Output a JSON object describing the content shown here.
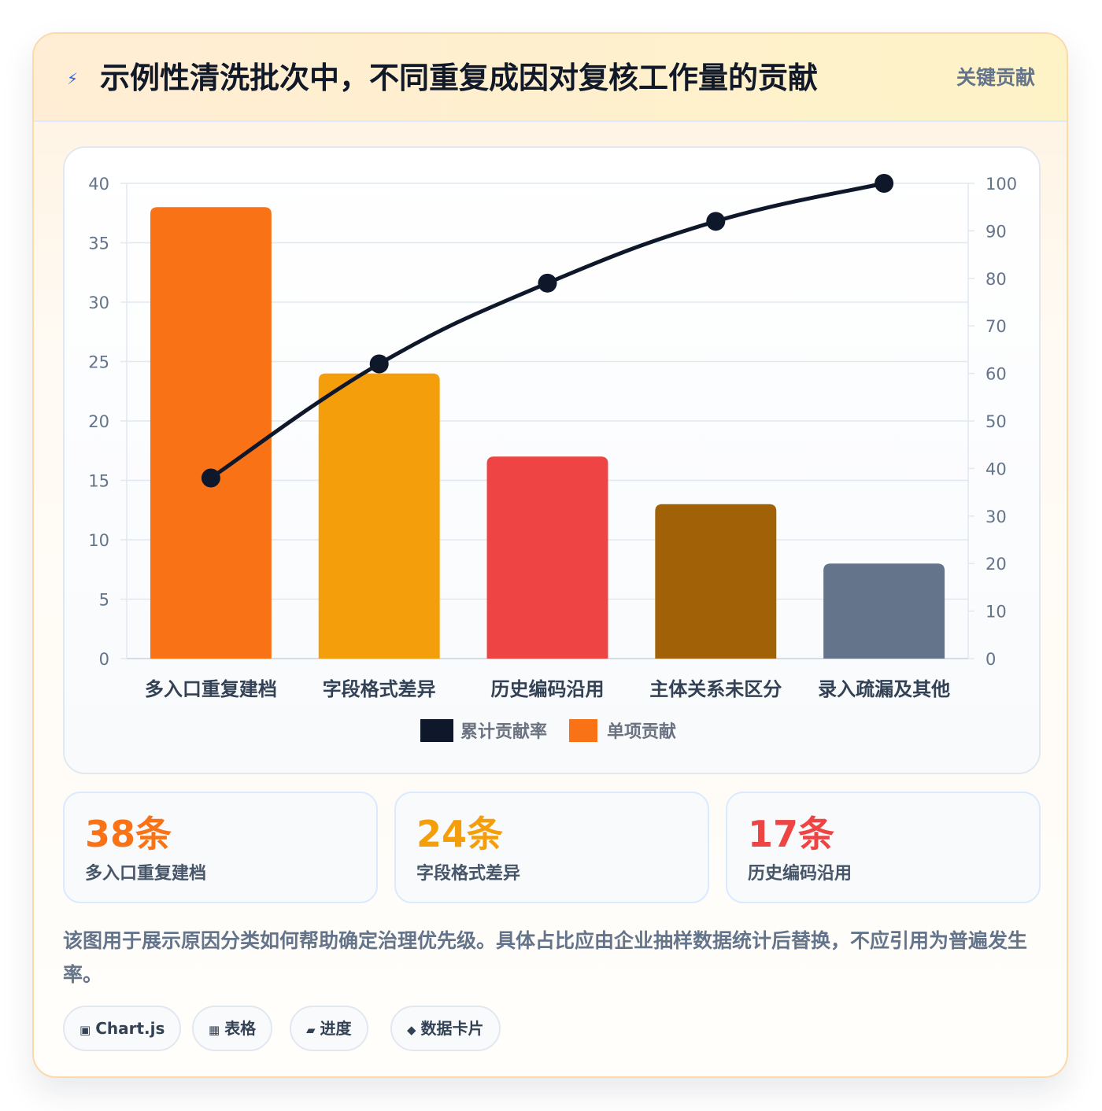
{
  "header": {
    "icon": "lightning-icon",
    "title": "示例性清洗批次中，不同重复成因对复核工作量的贡献",
    "badge": "关键贡献"
  },
  "chart_data": {
    "type": "bar",
    "categories": [
      "多入口重复建档",
      "字段格式差异",
      "历史编码沿用",
      "主体关系未区分",
      "录入疏漏及其他"
    ],
    "series": [
      {
        "name": "单项贡献",
        "type": "bar",
        "axis": "left",
        "values": [
          38,
          24,
          17,
          13,
          8
        ],
        "colors": [
          "#f97316",
          "#f59e0b",
          "#ef4444",
          "#a16207",
          "#64748b"
        ]
      },
      {
        "name": "累计贡献率",
        "type": "line",
        "axis": "right",
        "values": [
          38,
          62,
          79,
          92,
          100
        ],
        "color": "#0f172a"
      }
    ],
    "ylim": [
      0,
      40
    ],
    "y_ticks": [
      0,
      5,
      10,
      15,
      20,
      25,
      30,
      35,
      40
    ],
    "y2lim": [
      0,
      100
    ],
    "y2_ticks": [
      0,
      10,
      20,
      30,
      40,
      50,
      60,
      70,
      80,
      90,
      100
    ],
    "legend": [
      {
        "label": "累计贡献率",
        "color": "#0f172a"
      },
      {
        "label": "单项贡献",
        "color": "#f97316"
      }
    ],
    "legend_position": "bottom",
    "grid": true
  },
  "stats": [
    {
      "value": "38条",
      "label": "多入口重复建档",
      "color": "#f97316"
    },
    {
      "value": "24条",
      "label": "字段格式差异",
      "color": "#f59e0b"
    },
    {
      "value": "17条",
      "label": "历史编码沿用",
      "color": "#ef4444"
    }
  ],
  "note": "该图用于展示原因分类如何帮助确定治理优先级。具体占比应由企业抽样数据统计后替换，不应引用为普遍发生率。",
  "tags": [
    {
      "icon": "▣",
      "label": "Chart.js"
    },
    {
      "icon": "▦",
      "label": "表格"
    },
    {
      "icon": "▰",
      "label": "进度"
    },
    {
      "icon": "◆",
      "label": "数据卡片"
    }
  ]
}
